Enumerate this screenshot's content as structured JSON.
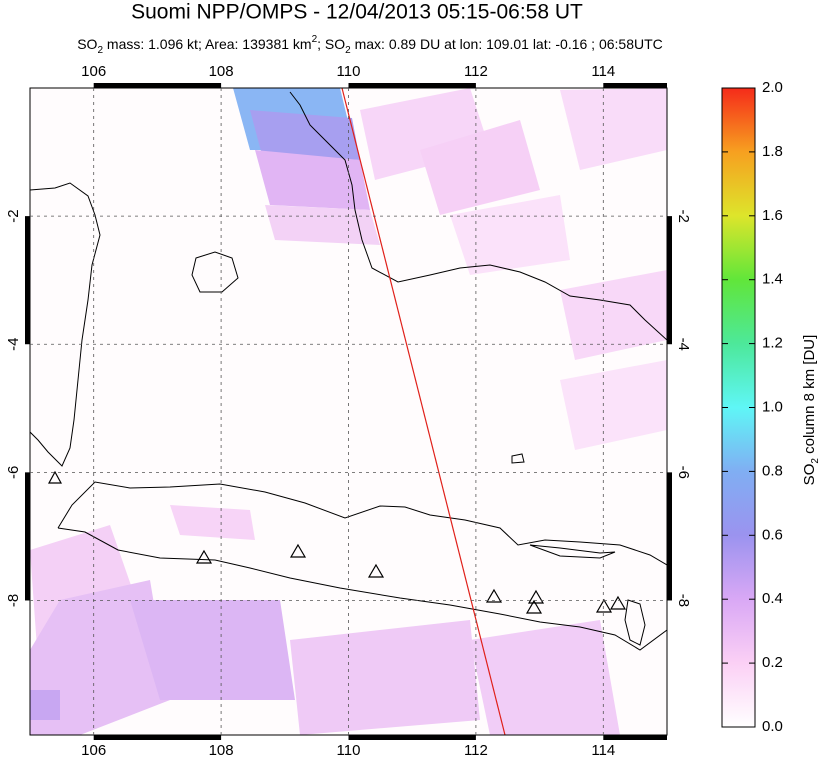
{
  "title": "Suomi NPP/OMPS - 12/04/2013 05:15-06:58 UT",
  "subtitle": [
    "SO",
    "2",
    " mass: 1.096 kt; Area: 139381 km",
    "2",
    "; SO",
    "2",
    " max: 0.89 DU at lon: 109.01 lat: -0.16 ; 06:58UTC"
  ],
  "map": {
    "xlim": [
      105,
      115
    ],
    "ylim": [
      -10.1,
      0
    ],
    "xticks": [
      106,
      108,
      110,
      112,
      114
    ],
    "yticks": [
      -2,
      -4,
      -6,
      -8
    ],
    "grid": true
  },
  "colorbar": {
    "label": [
      "SO",
      "2",
      " column 8 km [DU]"
    ],
    "lim": [
      0,
      2
    ],
    "ticks": [
      {
        "value": 0,
        "label": "0.0"
      },
      0.2,
      0.4,
      0.6,
      0.8,
      {
        "value": 1,
        "label": "1.0"
      },
      1.2,
      1.4,
      1.6,
      1.8,
      {
        "value": 2,
        "label": "2.0"
      }
    ]
  }
}
